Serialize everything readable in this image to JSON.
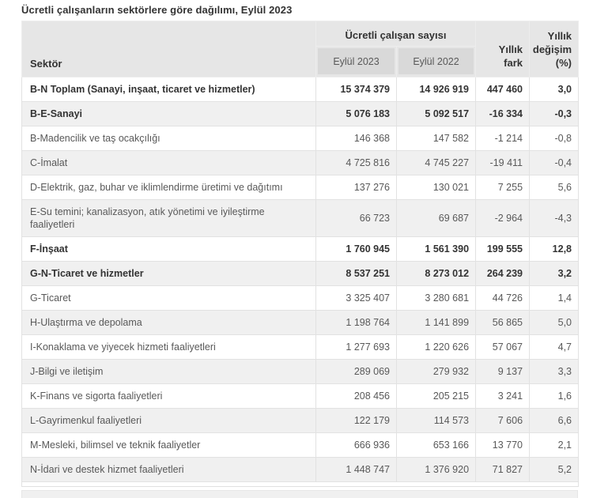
{
  "title": "Ücretli çalışanların sektörlere göre dağılımı, Eylül 2023",
  "colors": {
    "header_bg": "#e6e6e6",
    "subheader_bg": "#d9d9d9",
    "stripe_bg": "#f0f0f0",
    "border": "#e2e2e2",
    "text": "#595959",
    "text_bold": "#333333"
  },
  "table": {
    "header": {
      "sector": "Sektör",
      "group": "Ücretli çalışan sayısı",
      "col_2023": "Eylül 2023",
      "col_2022": "Eylül 2022",
      "diff_full": "Yıllık fark",
      "diff_lines": [
        "Yıllık",
        "fark"
      ],
      "pct_full": "Yıllık değişim (%)",
      "pct_lines": [
        "Yıllık",
        "değişim",
        "(%)"
      ]
    },
    "rows": [
      {
        "sector": "B-N Toplam (Sanayi, inşaat, ticaret ve hizmetler)",
        "v2023": "15 374 379",
        "v2022": "14 926 919",
        "diff": "447 460",
        "pct": "3,0",
        "bold": true
      },
      {
        "sector": "B-E-Sanayi",
        "v2023": "5 076 183",
        "v2022": "5 092 517",
        "diff": "-16 334",
        "pct": "-0,3",
        "bold": true
      },
      {
        "sector": "B-Madencilik ve taş ocakçılığı",
        "v2023": "146 368",
        "v2022": "147 582",
        "diff": "-1 214",
        "pct": "-0,8",
        "bold": false
      },
      {
        "sector": "C-İmalat",
        "v2023": "4 725 816",
        "v2022": "4 745 227",
        "diff": "-19 411",
        "pct": "-0,4",
        "bold": false
      },
      {
        "sector": "D-Elektrik, gaz, buhar ve iklimlendirme üretimi ve dağıtımı",
        "v2023": "137 276",
        "v2022": "130 021",
        "diff": "7 255",
        "pct": "5,6",
        "bold": false
      },
      {
        "sector": "E-Su temini; kanalizasyon, atık yönetimi ve iyileştirme faaliyetleri",
        "v2023": "66 723",
        "v2022": "69 687",
        "diff": "-2 964",
        "pct": "-4,3",
        "bold": false
      },
      {
        "sector": "F-İnşaat",
        "v2023": "1 760 945",
        "v2022": "1 561 390",
        "diff": "199 555",
        "pct": "12,8",
        "bold": true
      },
      {
        "sector": "G-N-Ticaret ve hizmetler",
        "v2023": "8 537 251",
        "v2022": "8 273 012",
        "diff": "264 239",
        "pct": "3,2",
        "bold": true
      },
      {
        "sector": "G-Ticaret",
        "v2023": "3 325 407",
        "v2022": "3 280 681",
        "diff": "44 726",
        "pct": "1,4",
        "bold": false
      },
      {
        "sector": "H-Ulaştırma ve depolama",
        "v2023": "1 198 764",
        "v2022": "1 141 899",
        "diff": "56 865",
        "pct": "5,0",
        "bold": false
      },
      {
        "sector": "I-Konaklama ve yiyecek hizmeti faaliyetleri",
        "v2023": "1 277 693",
        "v2022": "1 220 626",
        "diff": "57 067",
        "pct": "4,7",
        "bold": false
      },
      {
        "sector": "J-Bilgi ve iletişim",
        "v2023": "289 069",
        "v2022": "279 932",
        "diff": "9 137",
        "pct": "3,3",
        "bold": false
      },
      {
        "sector": "K-Finans ve sigorta faaliyetleri",
        "v2023": "208 456",
        "v2022": "205 215",
        "diff": "3 241",
        "pct": "1,6",
        "bold": false
      },
      {
        "sector": "L-Gayrimenkul faaliyetleri",
        "v2023": "122 179",
        "v2022": "114 573",
        "diff": "7 606",
        "pct": "6,6",
        "bold": false
      },
      {
        "sector": "M-Mesleki, bilimsel ve teknik faaliyetler",
        "v2023": "666 936",
        "v2022": "653 166",
        "diff": "13 770",
        "pct": "2,1",
        "bold": false
      },
      {
        "sector": "N-İdari ve destek hizmet faaliyetleri",
        "v2023": "1 448 747",
        "v2022": "1 376 920",
        "diff": "71 827",
        "pct": "5,2",
        "bold": false
      }
    ]
  },
  "chart_data": {
    "type": "table",
    "title": "Ücretli çalışanların sektörlere göre dağılımı, Eylül 2023",
    "columns": [
      "Sektör",
      "Ücretli çalışan sayısı - Eylül 2023",
      "Ücretli çalışan sayısı - Eylül 2022",
      "Yıllık fark",
      "Yıllık değişim (%)"
    ],
    "rows": [
      [
        "B-N Toplam (Sanayi, inşaat, ticaret ve hizmetler)",
        15374379,
        14926919,
        447460,
        3.0
      ],
      [
        "B-E-Sanayi",
        5076183,
        5092517,
        -16334,
        -0.3
      ],
      [
        "B-Madencilik ve taş ocakçılığı",
        146368,
        147582,
        -1214,
        -0.8
      ],
      [
        "C-İmalat",
        4725816,
        4745227,
        -19411,
        -0.4
      ],
      [
        "D-Elektrik, gaz, buhar ve iklimlendirme üretimi ve dağıtımı",
        137276,
        130021,
        7255,
        5.6
      ],
      [
        "E-Su temini; kanalizasyon, atık yönetimi ve iyileştirme faaliyetleri",
        66723,
        69687,
        -2964,
        -4.3
      ],
      [
        "F-İnşaat",
        1760945,
        1561390,
        199555,
        12.8
      ],
      [
        "G-N-Ticaret ve hizmetler",
        8537251,
        8273012,
        264239,
        3.2
      ],
      [
        "G-Ticaret",
        3325407,
        3280681,
        44726,
        1.4
      ],
      [
        "H-Ulaştırma ve depolama",
        1198764,
        1141899,
        56865,
        5.0
      ],
      [
        "I-Konaklama ve yiyecek hizmeti faaliyetleri",
        1277693,
        1220626,
        57067,
        4.7
      ],
      [
        "J-Bilgi ve iletişim",
        289069,
        279932,
        9137,
        3.3
      ],
      [
        "K-Finans ve sigorta faaliyetleri",
        208456,
        205215,
        3241,
        1.6
      ],
      [
        "L-Gayrimenkul faaliyetleri",
        122179,
        114573,
        7606,
        6.6
      ],
      [
        "M-Mesleki, bilimsel ve teknik faaliyetler",
        666936,
        653166,
        13770,
        2.1
      ],
      [
        "N-İdari ve destek hizmet faaliyetleri",
        1448747,
        1376920,
        71827,
        5.2
      ]
    ]
  }
}
